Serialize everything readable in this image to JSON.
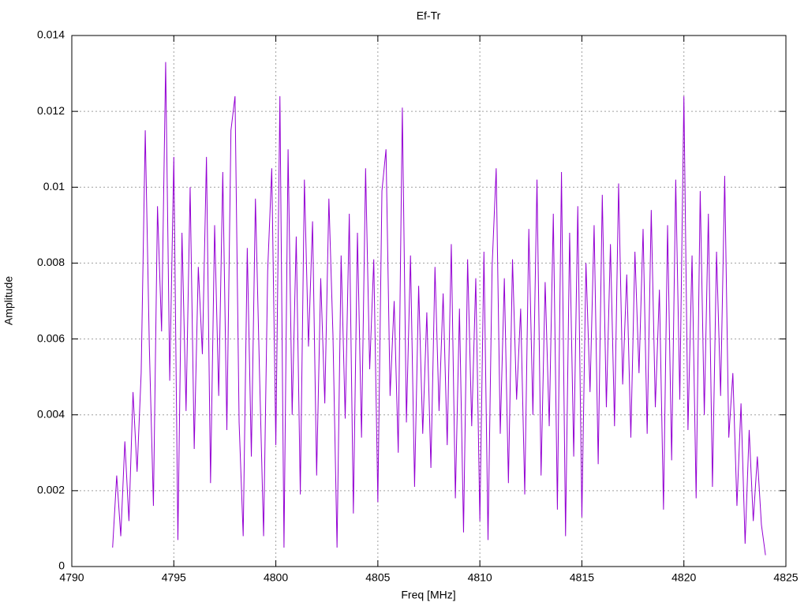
{
  "chart_data": {
    "type": "line",
    "title": "Ef-Tr",
    "x_label": "Freq [MHz]",
    "y_label": "Amplitude",
    "xlim": [
      4790,
      4825
    ],
    "xticks": [
      4790,
      4795,
      4800,
      4805,
      4810,
      4815,
      4820,
      4825
    ],
    "ylim": [
      0,
      0.014
    ],
    "yticks": [
      0,
      0.002,
      0.004,
      0.006,
      0.008,
      0.01,
      0.012,
      0.014
    ],
    "grid": true,
    "x": [
      4792.0,
      4792.2,
      4792.4,
      4792.6,
      4792.8,
      4793.0,
      4793.2,
      4793.4,
      4793.6,
      4793.8,
      4794.0,
      4794.2,
      4794.4,
      4794.6,
      4794.8,
      4795.0,
      4795.2,
      4795.4,
      4795.6,
      4795.8,
      4796.0,
      4796.2,
      4796.4,
      4796.6,
      4796.8,
      4797.0,
      4797.2,
      4797.4,
      4797.6,
      4797.8,
      4798.0,
      4798.2,
      4798.4,
      4798.6,
      4798.8,
      4799.0,
      4799.2,
      4799.4,
      4799.6,
      4799.8,
      4800.0,
      4800.2,
      4800.4,
      4800.6,
      4800.8,
      4801.0,
      4801.2,
      4801.4,
      4801.6,
      4801.8,
      4802.0,
      4802.2,
      4802.4,
      4802.6,
      4802.8,
      4803.0,
      4803.2,
      4803.4,
      4803.6,
      4803.8,
      4804.0,
      4804.2,
      4804.4,
      4804.6,
      4804.8,
      4805.0,
      4805.2,
      4805.4,
      4805.6,
      4805.8,
      4806.0,
      4806.2,
      4806.4,
      4806.6,
      4806.8,
      4807.0,
      4807.2,
      4807.4,
      4807.6,
      4807.8,
      4808.0,
      4808.2,
      4808.4,
      4808.6,
      4808.8,
      4809.0,
      4809.2,
      4809.4,
      4809.6,
      4809.8,
      4810.0,
      4810.2,
      4810.4,
      4810.6,
      4810.8,
      4811.0,
      4811.2,
      4811.4,
      4811.6,
      4811.8,
      4812.0,
      4812.2,
      4812.4,
      4812.6,
      4812.8,
      4813.0,
      4813.2,
      4813.4,
      4813.6,
      4813.8,
      4814.0,
      4814.2,
      4814.4,
      4814.6,
      4814.8,
      4815.0,
      4815.2,
      4815.4,
      4815.6,
      4815.8,
      4816.0,
      4816.2,
      4816.4,
      4816.6,
      4816.8,
      4817.0,
      4817.2,
      4817.4,
      4817.6,
      4817.8,
      4818.0,
      4818.2,
      4818.4,
      4818.6,
      4818.8,
      4819.0,
      4819.2,
      4819.4,
      4819.6,
      4819.8,
      4820.0,
      4820.2,
      4820.4,
      4820.6,
      4820.8,
      4821.0,
      4821.2,
      4821.4,
      4821.6,
      4821.8,
      4822.0,
      4822.2,
      4822.4,
      4822.6,
      4822.8,
      4823.0,
      4823.2,
      4823.4,
      4823.6,
      4823.8,
      4824.0
    ],
    "series": [
      {
        "color": "#9400d3",
        "values": [
          0.0005,
          0.0024,
          0.0008,
          0.0033,
          0.0012,
          0.0046,
          0.0025,
          0.0051,
          0.0115,
          0.0058,
          0.0016,
          0.0095,
          0.0062,
          0.0133,
          0.0049,
          0.0108,
          0.0007,
          0.0088,
          0.0041,
          0.01,
          0.0031,
          0.0079,
          0.0056,
          0.0108,
          0.0022,
          0.009,
          0.0045,
          0.0104,
          0.0036,
          0.0115,
          0.0124,
          0.0038,
          0.0008,
          0.0084,
          0.0029,
          0.0097,
          0.0051,
          0.0008,
          0.0078,
          0.0105,
          0.0032,
          0.0124,
          0.0005,
          0.011,
          0.004,
          0.0087,
          0.0019,
          0.0102,
          0.0058,
          0.0091,
          0.0024,
          0.0076,
          0.0043,
          0.0097,
          0.0061,
          0.0005,
          0.0082,
          0.0039,
          0.0093,
          0.0014,
          0.0088,
          0.0034,
          0.0105,
          0.0052,
          0.0081,
          0.0017,
          0.0099,
          0.011,
          0.0045,
          0.007,
          0.003,
          0.0121,
          0.0038,
          0.0082,
          0.0021,
          0.0074,
          0.0035,
          0.0067,
          0.0026,
          0.0079,
          0.0041,
          0.0072,
          0.0032,
          0.0085,
          0.0018,
          0.0068,
          0.0009,
          0.0081,
          0.0037,
          0.0076,
          0.0012,
          0.0083,
          0.0007,
          0.0079,
          0.0105,
          0.0035,
          0.0076,
          0.0022,
          0.0081,
          0.0044,
          0.0068,
          0.0019,
          0.0089,
          0.004,
          0.0102,
          0.0024,
          0.0075,
          0.0037,
          0.0093,
          0.0015,
          0.0104,
          0.0008,
          0.0088,
          0.0029,
          0.0095,
          0.0013,
          0.008,
          0.0046,
          0.009,
          0.0027,
          0.0098,
          0.0042,
          0.0085,
          0.0037,
          0.0101,
          0.0048,
          0.0077,
          0.0034,
          0.0083,
          0.0051,
          0.0089,
          0.0035,
          0.0094,
          0.0042,
          0.0073,
          0.0015,
          0.009,
          0.0028,
          0.0102,
          0.0044,
          0.0124,
          0.0036,
          0.0082,
          0.0018,
          0.0099,
          0.004,
          0.0093,
          0.0021,
          0.0083,
          0.0045,
          0.0103,
          0.0034,
          0.0051,
          0.0016,
          0.0043,
          0.0006,
          0.0036,
          0.0012,
          0.0029,
          0.0011,
          0.0003
        ]
      }
    ]
  }
}
